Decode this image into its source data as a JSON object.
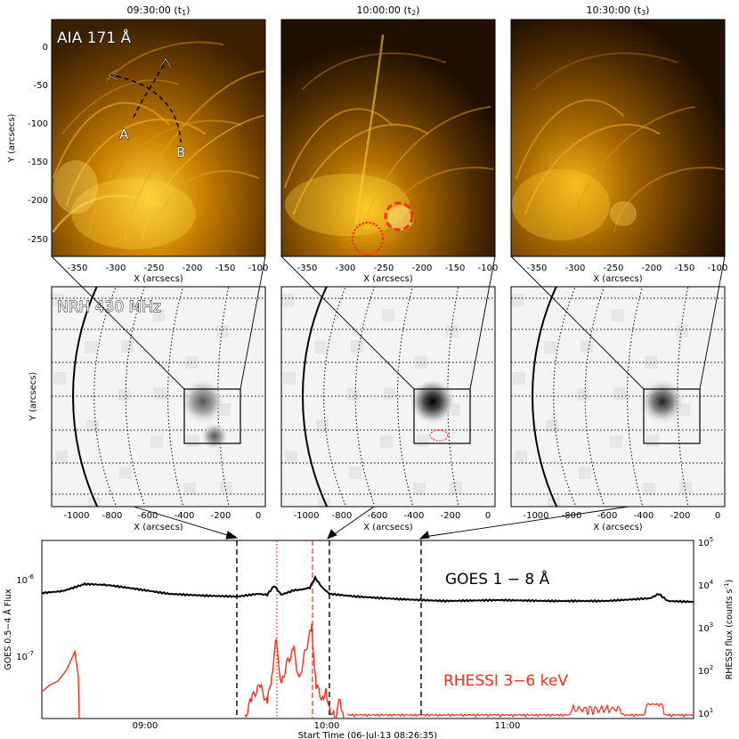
{
  "colors": {
    "aia_dark": "#2a1500",
    "aia_mid": "#9a5d00",
    "aia_bright": "#ffc21a",
    "red": "#ff2a1a",
    "black": "#000000"
  },
  "top_row": {
    "panels": [
      {
        "time": "09:30:00",
        "tlabel": "t",
        "tsub": "1"
      },
      {
        "time": "10:00:00",
        "tlabel": "t",
        "tsub": "2"
      },
      {
        "time": "10:30:00",
        "tlabel": "t",
        "tsub": "3"
      }
    ],
    "instrument": "AIA 171 Å",
    "ylabel": "Y (arcsecs)",
    "xlabel": "X (arcsecs)",
    "yticks": [
      "0",
      "-50",
      "-100",
      "-150",
      "-200",
      "-250"
    ],
    "xticks": [
      "-350",
      "-300",
      "-250",
      "-200",
      "-150",
      "-100"
    ],
    "markers": {
      "a": "A",
      "b": "B"
    }
  },
  "mid_row": {
    "instrument": "NRH 430 MHz",
    "ylabel": "Y (arcsecs)",
    "xlabel": "X (arcsecs)",
    "xticks": [
      "-1000",
      "-800",
      "-600",
      "-400",
      "-200",
      "0"
    ]
  },
  "bottom": {
    "goes_label": "GOES 1 − 8 Å",
    "rhessi_label": "RHESSI 3−6 keV",
    "ylabel_left": "GOES 0.5−4 Å Flux",
    "ylabel_right_a": "RHESSI flux (counts s",
    "ylabel_right_b": "-1",
    "ylabel_right_c": ")",
    "xlabel": "Start Time (06-Jul-13 08:26:35)",
    "xticks": [
      "09:00",
      "10:00",
      "11:00"
    ],
    "yticks_left": [
      "10",
      "10"
    ],
    "yticks_left_exp": [
      "-6",
      "-7"
    ],
    "yticks_right": [
      "10",
      "10",
      "10",
      "10",
      "10"
    ],
    "yticks_right_exp": [
      "5",
      "4",
      "3",
      "2",
      "1"
    ]
  }
}
